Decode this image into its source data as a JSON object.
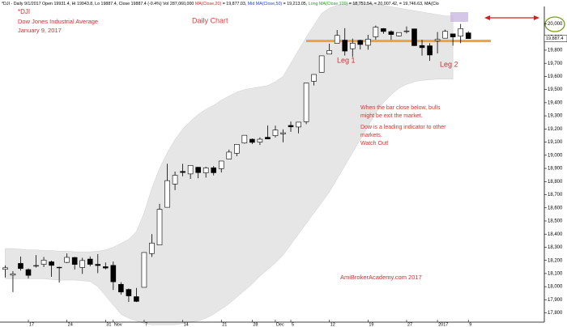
{
  "chart_data": {
    "type": "candlestick",
    "header": [
      {
        "text": "*DJI - Daily 9/1/2017 Open 19931.4, Hi 19943.8, Lo 19887.4, Close 19887.4 (-0.4%) Vol 287,060,000 ",
        "color": "#000000"
      },
      {
        "text": "MA(Close,20)",
        "color": "#d02020"
      },
      {
        "text": " = 19,877.03, ",
        "color": "#000000"
      },
      {
        "text": "Mid MA(Close,50)",
        "color": "#2040d0"
      },
      {
        "text": " = 19,213.05, ",
        "color": "#000000"
      },
      {
        "text": "Long MA(Close,100)",
        "color": "#20a020"
      },
      {
        "text": " = 18,751.54, ",
        "color": "#000000"
      },
      {
        "text": "= 20,007.42, ",
        "color": "#000000"
      },
      {
        "text": " = 19,746.63, MA(Clo",
        "color": "#000000"
      }
    ],
    "symbol": "*DJI",
    "subtitle": "Dow Jones Industrial Average",
    "date_label": "January 9, 2017",
    "title": "Daily Chart",
    "annotations": [
      {
        "text": "Leg 1",
        "color": "#d03030"
      },
      {
        "text": "Leg 2",
        "color": "#d03030"
      },
      {
        "text": "When the bar close below, bulls",
        "color": "#e03030"
      },
      {
        "text": "might be exit the market.",
        "color": "#e03030"
      },
      {
        "text": "Dow is a leading indicator to other",
        "color": "#e03030"
      },
      {
        "text": "markets.",
        "color": "#e03030"
      },
      {
        "text": "Watch Out!",
        "color": "#e03030"
      },
      {
        "text": "AmiBrokerAcademy.com  2017",
        "color": "#d03030"
      }
    ],
    "categories": [
      null,
      null,
      null,
      "17",
      null,
      null,
      null,
      null,
      "24",
      null,
      null,
      null,
      null,
      "31",
      "Nov",
      null,
      null,
      null,
      "7",
      null,
      null,
      null,
      null,
      "14",
      null,
      null,
      null,
      null,
      "21",
      null,
      null,
      null,
      "28",
      null,
      null,
      "Dec",
      null,
      "5",
      null,
      null,
      null,
      null,
      "12",
      null,
      null,
      null,
      null,
      "19",
      null,
      null,
      null,
      null,
      "27",
      null,
      null,
      null,
      "2017",
      null,
      null,
      null,
      "9"
    ],
    "open": [
      18132,
      18088,
      18177,
      18130,
      18157,
      18170,
      18189,
      18148,
      18185,
      18222,
      18146,
      18210,
      18170,
      18152,
      18162,
      18018,
      17979,
      17924,
      17995,
      18252,
      18317,
      18604,
      18781,
      18877,
      18858,
      18909,
      18866,
      18905,
      18898,
      18971,
      19015,
      19093,
      19122,
      19100,
      19137,
      19149,
      19163,
      19227,
      19215,
      19255,
      19563,
      19631,
      19770,
      19852,
      19876,
      19811,
      19874,
      19837,
      19901,
      19964,
      19941,
      19908,
      19944,
      19962,
      19835,
      19833,
      19872,
      19891,
      19924,
      19906,
      19931.4
    ],
    "high": [
      18162,
      18118,
      18229,
      18139,
      18240,
      18226,
      18198,
      18152,
      18253,
      18227,
      18220,
      18230,
      18248,
      18184,
      18191,
      18034,
      17986,
      17990,
      18262,
      18400,
      18630,
      18935,
      18876,
      18935,
      18925,
      18911,
      18913,
      18918,
      18956,
      19043,
      19084,
      19153,
      19128,
      19136,
      19226,
      19225,
      19197,
      19256,
      19252,
      19552,
      19617,
      19757,
      19849,
      19953,
      19967,
      19888,
      19880,
      19917,
      19987,
      19968,
      19950,
      19934,
      19981,
      19963,
      19879,
      19853,
      19938,
      19956,
      19924,
      19999,
      19943.8
    ],
    "low": [
      18070,
      17959,
      18123,
      18062,
      18145,
      18150,
      18075,
      18031,
      18180,
      18130,
      18097,
      18155,
      18103,
      18131,
      17975,
      17939,
      17884,
      17883,
      17995,
      18227,
      18317,
      18604,
      18735,
      18840,
      18820,
      18825,
      18830,
      18847,
      18869,
      18970,
      18993,
      19088,
      19085,
      19078,
      19124,
      19135,
      19098,
      19178,
      19167,
      19237,
      19531,
      19629,
      19771,
      19852,
      19759,
      19748,
      19805,
      19803,
      19880,
      19925,
      19878,
      19904,
      19927,
      19833,
      19759,
      19719,
      19775,
      19891,
      19834,
      19853,
      19887.4
    ],
    "close": [
      18144,
      18098,
      18138,
      18086,
      18161,
      18202,
      18162,
      18145,
      18223,
      18169,
      18199,
      18170,
      18161,
      18142,
      18037,
      17959,
      17930,
      17888,
      18260,
      18332,
      18589,
      18807,
      18848,
      18869,
      18923,
      18868,
      18904,
      18867,
      18956,
      19024,
      19083,
      19152,
      19098,
      19122,
      19124,
      19192,
      19171,
      19216,
      19252,
      19550,
      19615,
      19757,
      19797,
      19912,
      19793,
      19853,
      19843,
      19884,
      19975,
      19942,
      19919,
      19934,
      19946,
      19834,
      19819,
      19763,
      19882,
      19943,
      19900,
      19964,
      19887.4
    ],
    "band_upper": [
      18290,
      18290,
      18285,
      18280,
      18280,
      18275,
      18275,
      18270,
      18270,
      18265,
      18265,
      18265,
      18270,
      18280,
      18300,
      18330,
      18360,
      18420,
      18560,
      18750,
      18900,
      19020,
      19120,
      19200,
      19260,
      19310,
      19350,
      19380,
      19420,
      19450,
      19480,
      19500,
      19510,
      19520,
      19530,
      19560,
      19600,
      19700,
      19800,
      19900,
      19990,
      20080,
      20120,
      20140,
      20150,
      20160,
      20170,
      20160,
      20150,
      20140,
      20130,
      20120,
      20110,
      20100,
      20090,
      20080,
      20070,
      20060,
      20060
    ],
    "band_lower": [
      18060,
      18060,
      18060,
      18060,
      18060,
      18060,
      18055,
      18050,
      18050,
      18050,
      18045,
      18040,
      18000,
      17930,
      17860,
      17790,
      17760,
      17740,
      17720,
      17710,
      17710,
      17710,
      17710,
      17720,
      17730,
      17740,
      17760,
      17790,
      17830,
      17870,
      17920,
      17970,
      18020,
      18080,
      18130,
      18180,
      18240,
      18320,
      18400,
      18480,
      18560,
      18640,
      18720,
      18820,
      18920,
      19020,
      19120,
      19220,
      19320,
      19400,
      19460,
      19510,
      19540,
      19560,
      19570,
      19575,
      19580,
      19580,
      19580
    ],
    "support_level": 19870,
    "last_price": {
      "value": 19887.4,
      "label": "19,887.4"
    },
    "ylim": [
      17730,
      20120
    ],
    "yticks": [
      {
        "value": 17800,
        "label": "17,800"
      },
      {
        "value": 17900,
        "label": "17,900"
      },
      {
        "value": 18000,
        "label": "18,000"
      },
      {
        "value": 18100,
        "label": "18,100"
      },
      {
        "value": 18200,
        "label": "18,200"
      },
      {
        "value": 18300,
        "label": "18,300"
      },
      {
        "value": 18400,
        "label": "18,400"
      },
      {
        "value": 18500,
        "label": "18,500"
      },
      {
        "value": 18600,
        "label": "18,600"
      },
      {
        "value": 18700,
        "label": "18,700"
      },
      {
        "value": 18800,
        "label": "18,800"
      },
      {
        "value": 18900,
        "label": "18,900"
      },
      {
        "value": 19000,
        "label": "19,000"
      },
      {
        "value": 19100,
        "label": "19,100"
      },
      {
        "value": 19200,
        "label": "19,200"
      },
      {
        "value": 19300,
        "label": "19,300"
      },
      {
        "value": 19400,
        "label": "19,400"
      },
      {
        "value": 19500,
        "label": "19,500"
      },
      {
        "value": 19600,
        "label": "19,600"
      },
      {
        "value": 19700,
        "label": "19,700"
      },
      {
        "value": 19800,
        "label": "19,800"
      },
      {
        "value": 19900,
        "label": "19,900"
      },
      {
        "value": 20000,
        "label": "20,000"
      }
    ],
    "up_color": "#ffffff",
    "down_color": "#000000",
    "band_color": "#e6e6e6",
    "support_color": "#f0a040"
  }
}
